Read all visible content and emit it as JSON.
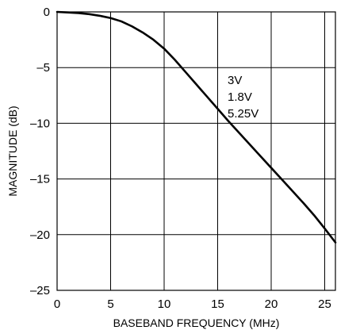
{
  "chart_data": {
    "type": "line",
    "title": "",
    "xlabel": "BASEBAND FREQUENCY (MHz)",
    "ylabel": "MAGNITUDE (dB)",
    "xlim": [
      0,
      26
    ],
    "ylim": [
      -25,
      0
    ],
    "xticks": [
      0,
      5,
      10,
      15,
      20,
      25
    ],
    "yticks": [
      0,
      -5,
      -10,
      -15,
      -20,
      -25
    ],
    "ytick_labels": [
      "0",
      "–5",
      "–10",
      "–15",
      "–20",
      "–25"
    ],
    "grid": true,
    "annotations": [
      "3V",
      "1.8V",
      "5.25V"
    ],
    "series": [
      {
        "x": [
          0,
          1,
          2,
          3,
          4,
          5,
          6,
          7,
          8,
          9,
          10,
          11,
          12,
          13,
          14,
          15,
          16,
          17,
          18,
          19,
          20,
          21,
          22,
          23,
          24,
          25,
          26
        ],
        "y": [
          0,
          -0.05,
          -0.1,
          -0.2,
          -0.35,
          -0.55,
          -0.85,
          -1.3,
          -1.85,
          -2.5,
          -3.3,
          -4.3,
          -5.4,
          -6.5,
          -7.6,
          -8.7,
          -9.8,
          -10.85,
          -11.9,
          -12.95,
          -14.0,
          -15.05,
          -16.1,
          -17.15,
          -18.25,
          -19.45,
          -20.7
        ]
      }
    ]
  }
}
